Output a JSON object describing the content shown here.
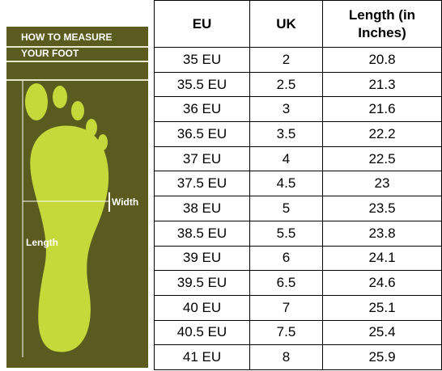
{
  "image": {
    "title_lines": [
      "HOW TO MEASURE",
      "YOUR FOOT"
    ],
    "width_label": "Width",
    "length_label": "Length"
  },
  "table": {
    "headers": [
      "EU",
      "UK",
      "Length (in Inches)"
    ],
    "rows": [
      [
        "35 EU",
        "2",
        "20.8"
      ],
      [
        "35.5 EU",
        "2.5",
        "21.3"
      ],
      [
        "36 EU",
        "3",
        "21.6"
      ],
      [
        "36.5 EU",
        "3.5",
        "22.2"
      ],
      [
        "37 EU",
        "4",
        "22.5"
      ],
      [
        "37.5 EU",
        "4.5",
        "23"
      ],
      [
        "38 EU",
        "5",
        "23.5"
      ],
      [
        "38.5 EU",
        "5.5",
        "23.8"
      ],
      [
        "39 EU",
        "6",
        "24.1"
      ],
      [
        "39.5 EU",
        "6.5",
        "24.6"
      ],
      [
        "40 EU",
        "7",
        "25.1"
      ],
      [
        "40.5 EU",
        "7.5",
        "25.4"
      ],
      [
        "41 EU",
        "8",
        "25.9"
      ]
    ]
  }
}
